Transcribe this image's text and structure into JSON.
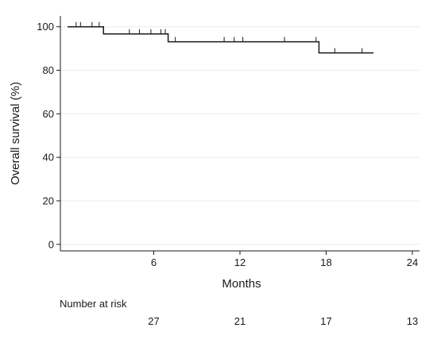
{
  "chart_data": {
    "type": "line",
    "subtype": "kaplan-meier-step",
    "title": "",
    "xlabel": "Months",
    "ylabel": "Overall survival (%)",
    "xlim": [
      -0.5,
      24.5
    ],
    "ylim": [
      -3,
      105
    ],
    "xticks": [
      6,
      12,
      18,
      24
    ],
    "yticks": [
      0,
      20,
      40,
      60,
      80,
      100
    ],
    "grid": "horizontal",
    "colors": {
      "curve": "#1a1a1a",
      "grid": "#e6ecf2",
      "axis": "#1a1a1a"
    },
    "series": [
      {
        "steps": [
          [
            0,
            100
          ],
          [
            2.5,
            100
          ],
          [
            2.5,
            96.7
          ],
          [
            7,
            96.7
          ],
          [
            7,
            93.1
          ],
          [
            17.5,
            93.1
          ],
          [
            17.5,
            88.0
          ],
          [
            21.3,
            88.0
          ]
        ],
        "censored": [
          [
            0.6,
            100
          ],
          [
            0.9,
            100
          ],
          [
            1.7,
            100
          ],
          [
            2.2,
            100
          ],
          [
            4.3,
            96.7
          ],
          [
            5.0,
            96.7
          ],
          [
            5.8,
            96.7
          ],
          [
            6.5,
            96.7
          ],
          [
            6.8,
            96.7
          ],
          [
            7.5,
            93.1
          ],
          [
            10.9,
            93.1
          ],
          [
            11.6,
            93.1
          ],
          [
            12.2,
            93.1
          ],
          [
            15.1,
            93.1
          ],
          [
            17.3,
            93.1
          ],
          [
            18.6,
            88.0
          ],
          [
            20.5,
            88.0
          ]
        ]
      }
    ],
    "risk_table": {
      "label": "Number at risk",
      "times": [
        6,
        12,
        18,
        24
      ],
      "counts": [
        "27",
        "21",
        "17",
        "13"
      ]
    }
  }
}
